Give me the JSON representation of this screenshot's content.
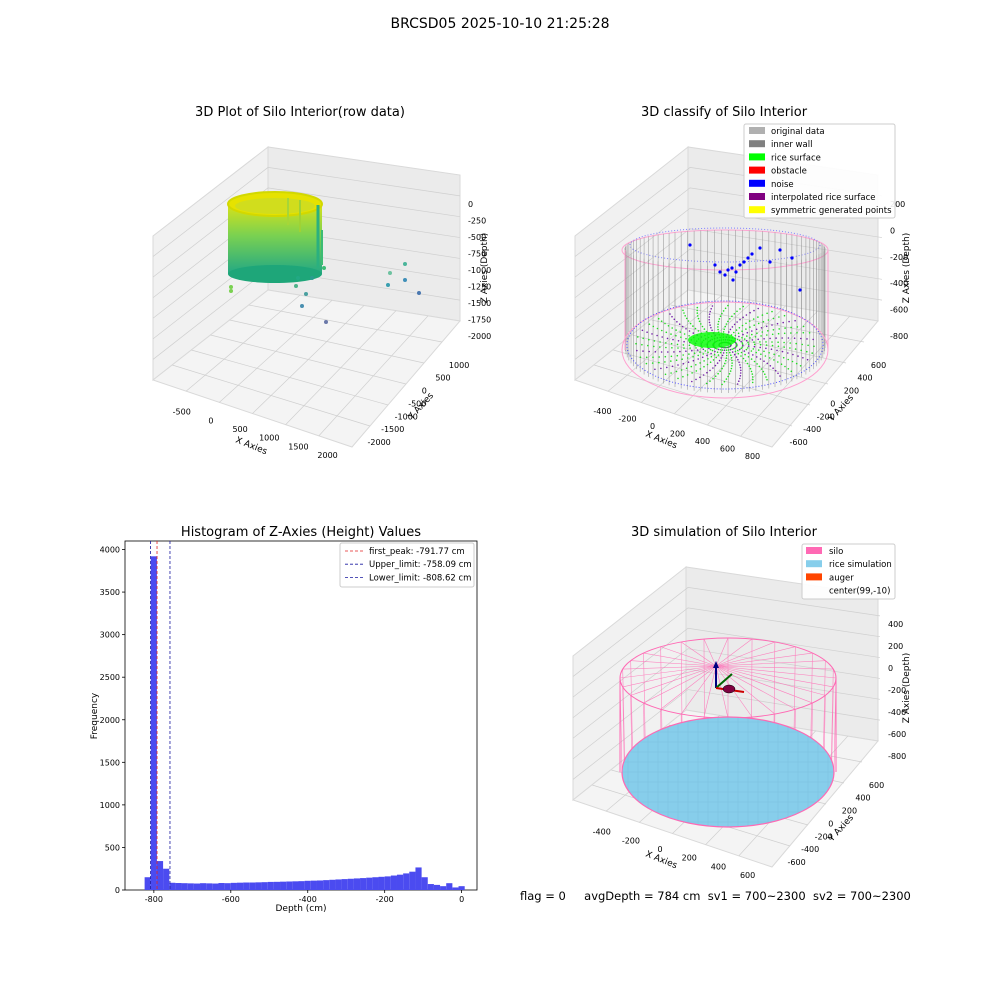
{
  "figure": {
    "suptitle": "BRCSD05 2025-10-10 21:25:28"
  },
  "colors": {
    "pane": "#ebebeb",
    "grid": "#d0d0d0",
    "hist_bar": "#4b4bf0",
    "first_peak_line": "#e32222",
    "limit_line": "#1a1aa0",
    "silo": "#ff69b4",
    "rice_sim": "#87ceeb",
    "auger": "#ff4500"
  },
  "plots": {
    "raw3d": {
      "title": "3D Plot of Silo Interior(row data)",
      "xlabel": "X Axies",
      "ylabel": "Y Axies",
      "zlabel": "Z Axies (Depth)",
      "xticks": [
        "-500",
        "0",
        "500",
        "1000",
        "1500",
        "2000"
      ],
      "yticks": [
        "1000",
        "500",
        "0",
        "-500",
        "-1000",
        "-1500",
        "-2000"
      ],
      "zticks": [
        "0",
        "-250",
        "-500",
        "-750",
        "-1000",
        "-1250",
        "-1500",
        "-1750",
        "-2000"
      ]
    },
    "classify3d": {
      "title": "3D classify of Silo Interior",
      "xlabel": "X Axies",
      "ylabel": "Y Axies",
      "zlabel": "Z Axies (Depth)",
      "xticks": [
        "-400",
        "-200",
        "0",
        "200",
        "400",
        "600",
        "800"
      ],
      "yticks": [
        "600",
        "400",
        "200",
        "0",
        "-200",
        "-400",
        "-600"
      ],
      "zticks": [
        "200",
        "0",
        "-200",
        "-400",
        "-600",
        "-800"
      ],
      "legend": [
        {
          "label": "original data",
          "color": "#b0b0b0"
        },
        {
          "label": "inner wall",
          "color": "#808080"
        },
        {
          "label": "rice surface",
          "color": "#00ff00"
        },
        {
          "label": "obstacle",
          "color": "#ff0000"
        },
        {
          "label": "noise",
          "color": "#0000ff"
        },
        {
          "label": "interpolated rice surface",
          "color": "#800080"
        },
        {
          "label": "symmetric generated points",
          "color": "#ffff00"
        }
      ]
    },
    "sim3d": {
      "title": "3D simulation of Silo Interior",
      "xlabel": "X Axies",
      "ylabel": "Y Axies",
      "zlabel": "Z Axies (Depth)",
      "xticks": [
        "-400",
        "-200",
        "0",
        "200",
        "400",
        "600"
      ],
      "yticks": [
        "600",
        "400",
        "200",
        "0",
        "-200",
        "-400",
        "-600"
      ],
      "zticks": [
        "400",
        "200",
        "0",
        "-200",
        "-400",
        "-600",
        "-800"
      ],
      "legend": [
        {
          "label": "silo",
          "color": "#ff69b4"
        },
        {
          "label": "rice simulation",
          "color": "#87ceeb"
        },
        {
          "label": "auger",
          "color": "#ff4500"
        },
        {
          "label": "center(99,-10)",
          "color": ""
        }
      ]
    }
  },
  "chart_data": [
    {
      "type": "bar",
      "title": "Histogram of Z-Axies (Height) Values",
      "xlabel": "Depth (cm)",
      "ylabel": "Frequency",
      "xlim": [
        -875,
        40
      ],
      "ylim": [
        0,
        4100
      ],
      "xticks": [
        -800,
        -600,
        -400,
        -200,
        0
      ],
      "yticks": [
        0,
        500,
        1000,
        1500,
        2000,
        2500,
        3000,
        3500,
        4000
      ],
      "bin_width": 16,
      "bins": [
        {
          "x0": -824,
          "count": 150
        },
        {
          "x0": -808,
          "count": 3920
        },
        {
          "x0": -792,
          "count": 340
        },
        {
          "x0": -776,
          "count": 250
        },
        {
          "x0": -760,
          "count": 85
        },
        {
          "x0": -744,
          "count": 82
        },
        {
          "x0": -728,
          "count": 80
        },
        {
          "x0": -712,
          "count": 78
        },
        {
          "x0": -696,
          "count": 76
        },
        {
          "x0": -680,
          "count": 80
        },
        {
          "x0": -664,
          "count": 78
        },
        {
          "x0": -648,
          "count": 76
        },
        {
          "x0": -632,
          "count": 82
        },
        {
          "x0": -616,
          "count": 80
        },
        {
          "x0": -600,
          "count": 84
        },
        {
          "x0": -584,
          "count": 86
        },
        {
          "x0": -568,
          "count": 88
        },
        {
          "x0": -552,
          "count": 88
        },
        {
          "x0": -536,
          "count": 90
        },
        {
          "x0": -520,
          "count": 92
        },
        {
          "x0": -504,
          "count": 95
        },
        {
          "x0": -488,
          "count": 96
        },
        {
          "x0": -472,
          "count": 98
        },
        {
          "x0": -456,
          "count": 100
        },
        {
          "x0": -440,
          "count": 102
        },
        {
          "x0": -424,
          "count": 104
        },
        {
          "x0": -408,
          "count": 108
        },
        {
          "x0": -392,
          "count": 110
        },
        {
          "x0": -376,
          "count": 112
        },
        {
          "x0": -360,
          "count": 116
        },
        {
          "x0": -344,
          "count": 120
        },
        {
          "x0": -328,
          "count": 124
        },
        {
          "x0": -312,
          "count": 128
        },
        {
          "x0": -296,
          "count": 132
        },
        {
          "x0": -280,
          "count": 136
        },
        {
          "x0": -264,
          "count": 140
        },
        {
          "x0": -248,
          "count": 145
        },
        {
          "x0": -232,
          "count": 150
        },
        {
          "x0": -216,
          "count": 155
        },
        {
          "x0": -200,
          "count": 160
        },
        {
          "x0": -184,
          "count": 170
        },
        {
          "x0": -168,
          "count": 180
        },
        {
          "x0": -152,
          "count": 195
        },
        {
          "x0": -136,
          "count": 215
        },
        {
          "x0": -120,
          "count": 265
        },
        {
          "x0": -104,
          "count": 150
        },
        {
          "x0": -88,
          "count": 70
        },
        {
          "x0": -72,
          "count": 60
        },
        {
          "x0": -56,
          "count": 45
        },
        {
          "x0": -40,
          "count": 80
        },
        {
          "x0": -24,
          "count": 30
        },
        {
          "x0": -8,
          "count": 45
        }
      ],
      "lines": [
        {
          "label": "first_peak: -791.77 cm",
          "x": -791.77,
          "color": "#e32222"
        },
        {
          "label": "Upper_limit: -758.09 cm",
          "x": -758.09,
          "color": "#1a1aa0"
        },
        {
          "label": "Lower_limit: -808.62 cm",
          "x": -808.62,
          "color": "#1a1aa0"
        }
      ],
      "legend_position": "top-right",
      "grid": false
    }
  ],
  "footer": {
    "flag": "flag = 0",
    "avg_depth": "avgDepth = 784 cm",
    "sv1": "sv1 = 700~2300",
    "sv2": "sv2 = 700~2300"
  }
}
